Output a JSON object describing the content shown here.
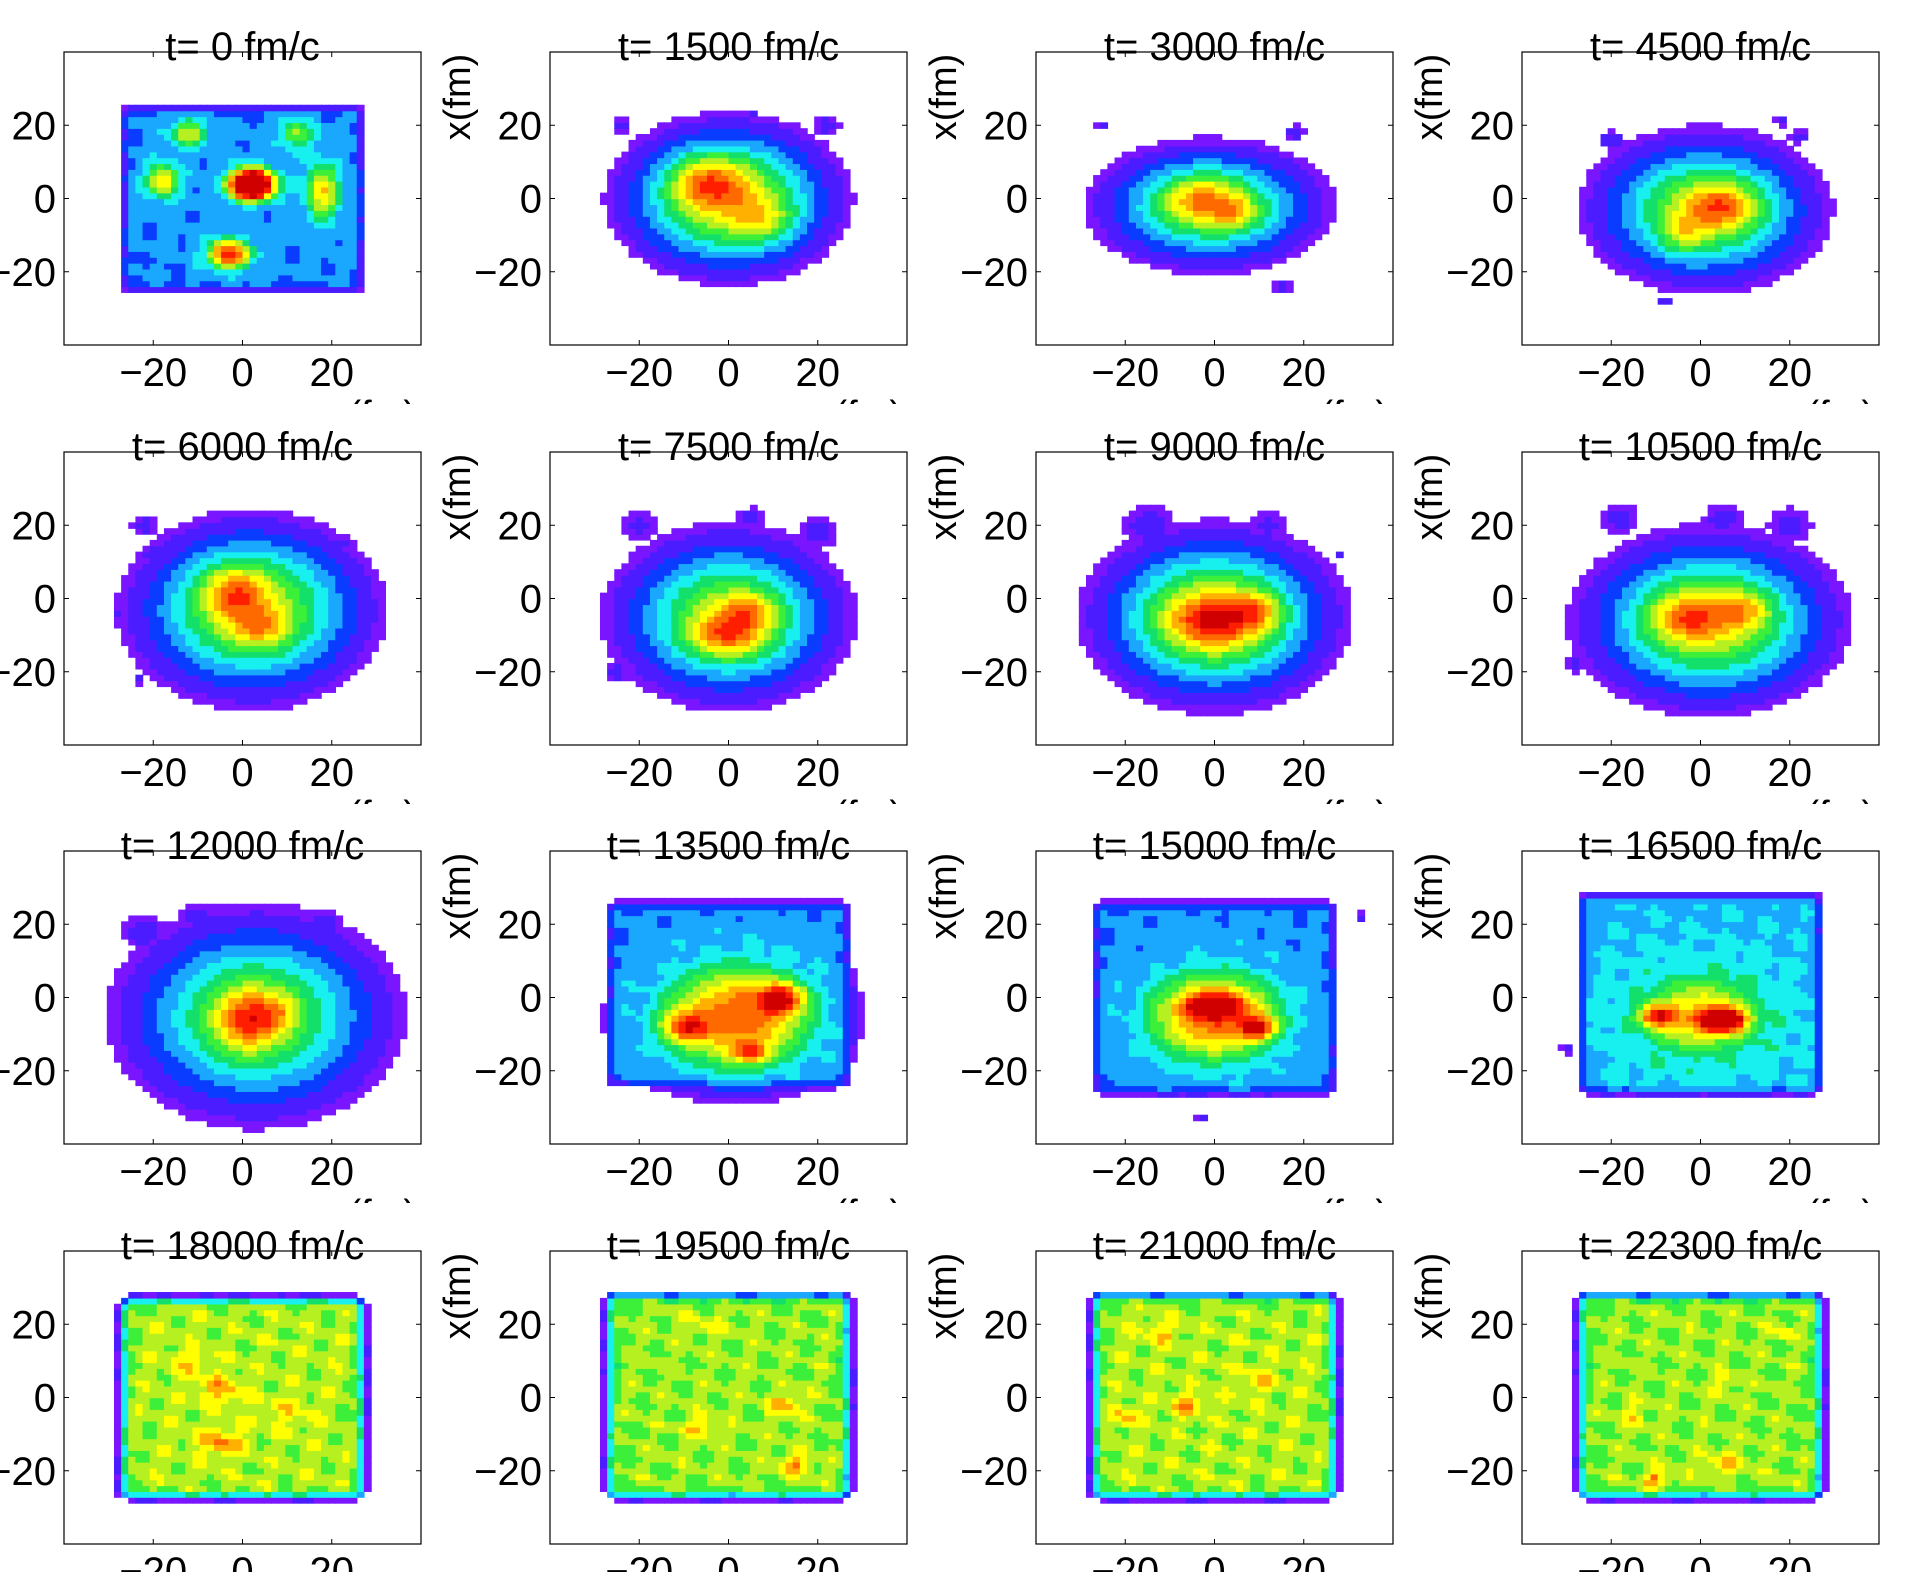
{
  "chart_data": {
    "type": "heatmap",
    "layout": {
      "rows": 4,
      "cols": 4
    },
    "xlabel_visible": "z(fm)",
    "ylabel": "x(fm)",
    "xlim": [
      -40,
      40
    ],
    "ylim": [
      -40,
      40
    ],
    "xticks": [
      "−20",
      "0",
      "20"
    ],
    "yticks": [
      "20",
      "0",
      "−20"
    ],
    "colormap": [
      "#ffffff",
      "#7a16ff",
      "#4a1cff",
      "#0a3cff",
      "#1aa8ff",
      "#18f0f0",
      "#12e06a",
      "#3cf03a",
      "#b6f020",
      "#ffff00",
      "#ffb000",
      "#ff6a00",
      "#ff1e00",
      "#d00000"
    ],
    "panels": [
      {
        "title": "t= 0 fm/c",
        "ylabel": "",
        "pattern": "initial",
        "blobs": [
          [
            2,
            4,
            6,
            5,
            0.95
          ],
          [
            -3,
            -15,
            6,
            5,
            0.6
          ],
          [
            -18,
            5,
            5,
            6,
            0.45
          ],
          [
            18,
            2,
            5,
            10,
            0.45
          ],
          [
            -12,
            18,
            5,
            5,
            0.4
          ],
          [
            12,
            18,
            5,
            5,
            0.35
          ]
        ],
        "extent": [
          -27,
          27,
          -25,
          25,
          0.3
        ],
        "spots": []
      },
      {
        "title": "t= 1500 fm/c",
        "ylabel": "x(fm)",
        "pattern": "blob",
        "blobs": [
          [
            0,
            0,
            20,
            17,
            0.72
          ],
          [
            -5,
            5,
            8,
            7,
            0.28
          ],
          [
            8,
            -6,
            7,
            6,
            0.18
          ]
        ],
        "extent": null,
        "spots": [
          [
            -24,
            20,
            3
          ],
          [
            22,
            20,
            4
          ],
          [
            5,
            23,
            2
          ]
        ]
      },
      {
        "title": "t= 3000 fm/c",
        "ylabel": "x(fm)",
        "pattern": "blob",
        "blobs": [
          [
            -1,
            -2,
            21,
            14,
            0.62
          ],
          [
            -3,
            0,
            8,
            6,
            0.25
          ],
          [
            5,
            -4,
            5,
            4,
            0.2
          ]
        ],
        "extent": null,
        "spots": [
          [
            -25,
            20,
            2
          ],
          [
            18,
            18,
            3
          ],
          [
            15,
            -24,
            3
          ]
        ]
      },
      {
        "title": "t= 4500 fm/c",
        "ylabel": "x(fm)",
        "pattern": "blob",
        "blobs": [
          [
            1,
            -3,
            21,
            17,
            0.65
          ],
          [
            5,
            -2,
            8,
            6,
            0.28
          ],
          [
            -4,
            -10,
            5,
            5,
            0.18
          ]
        ],
        "extent": null,
        "spots": [
          [
            -20,
            16,
            4
          ],
          [
            22,
            17,
            3
          ],
          [
            18,
            21,
            2
          ],
          [
            -8,
            -28,
            2
          ]
        ]
      },
      {
        "title": "t= 6000 fm/c",
        "ylabel": "",
        "pattern": "blob",
        "blobs": [
          [
            2,
            -3,
            22,
            20,
            0.68
          ],
          [
            -2,
            2,
            7,
            7,
            0.28
          ],
          [
            4,
            -8,
            6,
            5,
            0.2
          ]
        ],
        "extent": null,
        "spots": [
          [
            -22,
            20,
            4
          ],
          [
            -20,
            12,
            4
          ],
          [
            -23,
            -22,
            2
          ],
          [
            -28,
            -4,
            2
          ],
          [
            22,
            15,
            4
          ]
        ]
      },
      {
        "title": "t= 7500 fm/c",
        "ylabel": "x(fm)",
        "pattern": "blob",
        "blobs": [
          [
            0,
            -5,
            21,
            19,
            0.65
          ],
          [
            0,
            -10,
            8,
            6,
            0.3
          ],
          [
            5,
            -3,
            6,
            5,
            0.2
          ]
        ],
        "extent": null,
        "spots": [
          [
            -20,
            20,
            5
          ],
          [
            5,
            22,
            4
          ],
          [
            20,
            18,
            6
          ],
          [
            -20,
            -15,
            6
          ],
          [
            -25,
            -20,
            4
          ]
        ]
      },
      {
        "title": "t= 9000 fm/c",
        "ylabel": "x(fm)",
        "pattern": "blob",
        "blobs": [
          [
            0,
            -5,
            22,
            19,
            0.72
          ],
          [
            0,
            -6,
            10,
            7,
            0.3
          ],
          [
            10,
            -3,
            5,
            5,
            0.2
          ]
        ],
        "extent": null,
        "spots": [
          [
            -15,
            20,
            8
          ],
          [
            12,
            20,
            5
          ],
          [
            -22,
            -18,
            4
          ],
          [
            28,
            12,
            2
          ],
          [
            -25,
            0,
            4
          ]
        ]
      },
      {
        "title": "t= 10500 fm/c",
        "ylabel": "x(fm)",
        "pattern": "blob",
        "blobs": [
          [
            2,
            -6,
            23,
            19,
            0.7
          ],
          [
            -3,
            -5,
            8,
            6,
            0.25
          ],
          [
            10,
            -3,
            6,
            5,
            0.2
          ]
        ],
        "extent": null,
        "spots": [
          [
            -18,
            22,
            6
          ],
          [
            5,
            22,
            6
          ],
          [
            20,
            20,
            7
          ],
          [
            -28,
            -18,
            3
          ]
        ]
      },
      {
        "title": "t= 12000 fm/c",
        "ylabel": "",
        "pattern": "blob",
        "blobs": [
          [
            3,
            -5,
            25,
            23,
            0.62
          ],
          [
            1,
            -6,
            7,
            8,
            0.32
          ],
          [
            8,
            -4,
            5,
            5,
            0.15
          ]
        ],
        "extent": null,
        "spots": [
          [
            -22,
            18,
            7
          ],
          [
            -10,
            22,
            6
          ],
          [
            18,
            20,
            6
          ]
        ]
      },
      {
        "title": "t= 13500 fm/c",
        "ylabel": "x(fm)",
        "pattern": "diffuse",
        "blobs": [
          [
            2,
            -5,
            20,
            17,
            0.55
          ],
          [
            12,
            0,
            5,
            4,
            0.3
          ],
          [
            -10,
            -8,
            5,
            4,
            0.25
          ],
          [
            5,
            -15,
            4,
            3,
            0.2
          ]
        ],
        "extent": [
          -27,
          27,
          -24,
          26,
          0.3
        ],
        "spots": []
      },
      {
        "title": "t= 15000 fm/c",
        "ylabel": "x(fm)",
        "pattern": "diffuse",
        "blobs": [
          [
            0,
            -5,
            18,
            15,
            0.55
          ],
          [
            0,
            -2,
            6,
            3,
            0.3
          ],
          [
            10,
            -8,
            4,
            3,
            0.3
          ]
        ],
        "extent": [
          -27,
          27,
          -26,
          26,
          0.3
        ],
        "spots": [
          [
            33,
            22,
            2
          ],
          [
            -3,
            -33,
            2
          ]
        ]
      },
      {
        "title": "t= 16500 fm/c",
        "ylabel": "x(fm)",
        "pattern": "diffuse",
        "blobs": [
          [
            0,
            -5,
            18,
            14,
            0.45
          ],
          [
            5,
            -6,
            5,
            3,
            0.45
          ],
          [
            -10,
            -5,
            4,
            3,
            0.3
          ]
        ],
        "extent": [
          -27,
          27,
          -26,
          28,
          0.35
        ],
        "spots": [
          [
            -30,
            -14,
            2
          ]
        ]
      },
      {
        "title": "t= 18000 fm/c",
        "ylabel": "",
        "pattern": "uniform",
        "blobs": [
          [
            -5,
            -12,
            5,
            4,
            0.45
          ],
          [
            -5,
            2,
            5,
            4,
            0.4
          ],
          [
            -12,
            10,
            4,
            4,
            0.25
          ],
          [
            10,
            -4,
            6,
            5,
            0.2
          ]
        ],
        "extent": [
          -27,
          27,
          -27,
          27,
          0.62
        ],
        "spots": []
      },
      {
        "title": "t= 19500 fm/c",
        "ylabel": "x(fm)",
        "pattern": "uniform",
        "blobs": [
          [
            -6,
            -8,
            4,
            3,
            0.4
          ],
          [
            13,
            -2,
            4,
            3,
            0.45
          ],
          [
            15,
            -18,
            4,
            3,
            0.45
          ],
          [
            -5,
            20,
            5,
            3,
            0.2
          ]
        ],
        "extent": [
          -27,
          27,
          -27,
          28,
          0.6
        ],
        "spots": []
      },
      {
        "title": "t= 21000 fm/c",
        "ylabel": "x(fm)",
        "pattern": "uniform",
        "blobs": [
          [
            -6,
            -2,
            4,
            3,
            0.4
          ],
          [
            -20,
            -5,
            3,
            3,
            0.35
          ],
          [
            -12,
            18,
            4,
            3,
            0.3
          ],
          [
            10,
            5,
            5,
            4,
            0.2
          ]
        ],
        "extent": [
          -27,
          27,
          -27,
          28,
          0.62
        ],
        "spots": []
      },
      {
        "title": "t= 22300 fm/c",
        "ylabel": "x(fm)",
        "pattern": "uniform",
        "blobs": [
          [
            -10,
            -22,
            3,
            3,
            0.45
          ],
          [
            5,
            -18,
            6,
            3,
            0.35
          ],
          [
            -15,
            -5,
            3,
            3,
            0.3
          ],
          [
            18,
            18,
            3,
            2,
            0.3
          ],
          [
            5,
            4,
            3,
            3,
            0.25
          ]
        ],
        "extent": [
          -27,
          27,
          -27,
          28,
          0.6
        ],
        "spots": []
      }
    ]
  }
}
